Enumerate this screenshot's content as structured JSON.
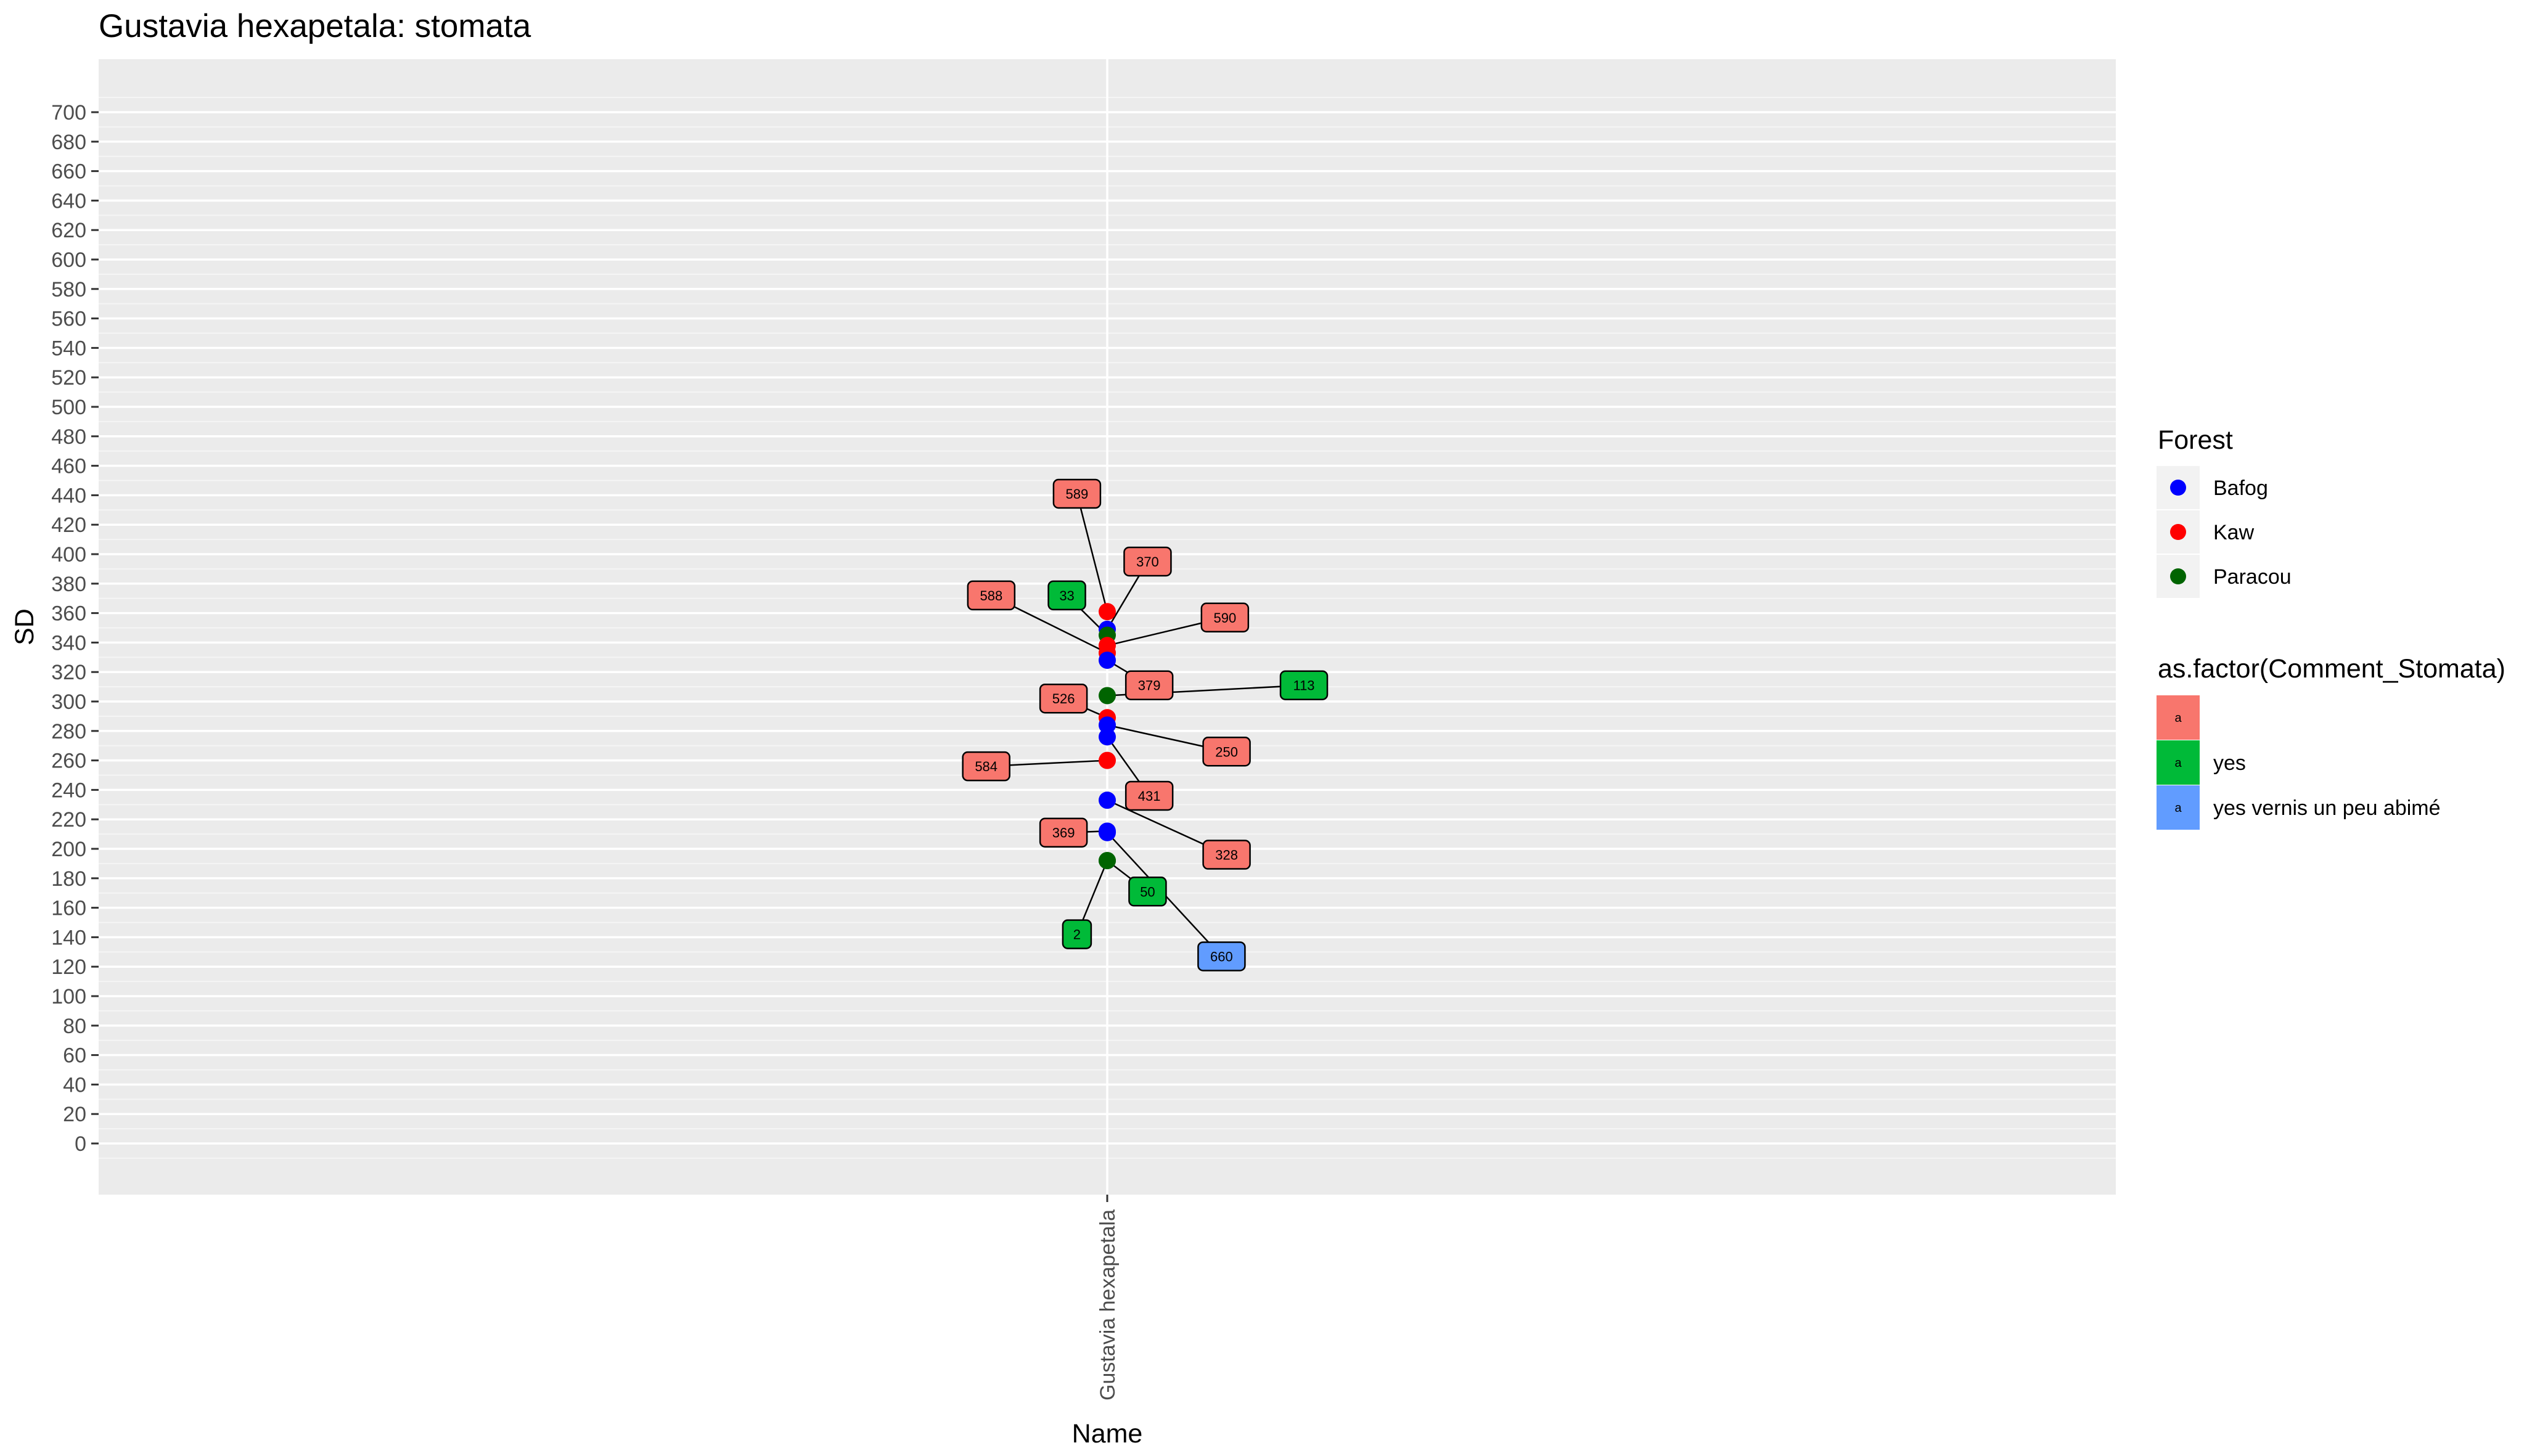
{
  "chart_data": {
    "type": "scatter",
    "title": "Gustavia hexapetala: stomata",
    "xlabel": "Name",
    "ylabel": "SD",
    "categories": [
      "Gustavia hexapetala"
    ],
    "ylim": [
      -20,
      720
    ],
    "yticks": [
      0,
      20,
      40,
      60,
      80,
      100,
      120,
      140,
      160,
      180,
      200,
      220,
      240,
      260,
      280,
      300,
      320,
      340,
      360,
      380,
      400,
      420,
      440,
      460,
      480,
      500,
      520,
      540,
      560,
      580,
      600,
      620,
      640,
      660,
      680,
      700
    ],
    "grid": true,
    "legend_position": "right",
    "colors": {
      "Bafog": "#0000ff",
      "Kaw": "#ff0000",
      "Paracou": "#006400",
      "comment_blank": "#f8766d",
      "comment_yes": "#00ba38",
      "comment_yes_vernis": "#619cff"
    },
    "legends": [
      {
        "title": "Forest",
        "entries": [
          {
            "label": "Bafog",
            "color": "#0000ff"
          },
          {
            "label": "Kaw",
            "color": "#ff0000"
          },
          {
            "label": "Paracou",
            "color": "#006400"
          }
        ]
      },
      {
        "title": "as.factor(Comment_Stomata)",
        "key_letter": "a",
        "entries": [
          {
            "label": "",
            "color": "#f8766d"
          },
          {
            "label": "yes",
            "color": "#00ba38"
          },
          {
            "label": "yes vernis un peu abimé",
            "color": "#619cff"
          }
        ]
      }
    ],
    "points": [
      {
        "label": "589",
        "y": 361,
        "forest": "Kaw",
        "comment": "",
        "label_dx": -0.18,
        "label_y": 441
      },
      {
        "label": "370",
        "y": 349,
        "forest": "Bafog",
        "comment": "",
        "label_dx": 0.24,
        "label_y": 395
      },
      {
        "label": "33",
        "y": 345,
        "forest": "Paracou",
        "comment": "yes",
        "label_dx": -0.24,
        "label_y": 372
      },
      {
        "label": "590",
        "y": 338,
        "forest": "Kaw",
        "comment": "",
        "label_dx": 0.7,
        "label_y": 357
      },
      {
        "label": "588",
        "y": 333,
        "forest": "Kaw",
        "comment": "",
        "label_dx": -0.69,
        "label_y": 372
      },
      {
        "label": "379",
        "y": 328,
        "forest": "Bafog",
        "comment": "",
        "label_dx": 0.25,
        "label_y": 311
      },
      {
        "label": "113",
        "y": 304,
        "forest": "Paracou",
        "comment": "yes",
        "label_dx": 1.17,
        "label_y": 311
      },
      {
        "label": "526",
        "y": 289,
        "forest": "Kaw",
        "comment": "",
        "label_dx": -0.26,
        "label_y": 302
      },
      {
        "label": "250",
        "y": 284,
        "forest": "Bafog",
        "comment": "",
        "label_dx": 0.71,
        "label_y": 266
      },
      {
        "label": "431",
        "y": 276,
        "forest": "Bafog",
        "comment": "",
        "label_dx": 0.25,
        "label_y": 236
      },
      {
        "label": "584",
        "y": 260,
        "forest": "Kaw",
        "comment": "",
        "label_dx": -0.72,
        "label_y": 256
      },
      {
        "label": "328",
        "y": 233,
        "forest": "Bafog",
        "comment": "",
        "label_dx": 0.71,
        "label_y": 196
      },
      {
        "label": "369",
        "y": 212,
        "forest": "Bafog",
        "comment": "",
        "label_dx": -0.26,
        "label_y": 211
      },
      {
        "label": "660",
        "y": 211,
        "forest": "Bafog",
        "comment": "yes vernis un peu abimé",
        "label_dx": 0.68,
        "label_y": 127
      },
      {
        "label": "50",
        "y": 192,
        "forest": "Paracou",
        "comment": "yes",
        "label_dx": 0.24,
        "label_y": 171
      },
      {
        "label": "2",
        "y": 192,
        "forest": "Paracou",
        "comment": "yes",
        "label_dx": -0.18,
        "label_y": 142
      }
    ]
  }
}
